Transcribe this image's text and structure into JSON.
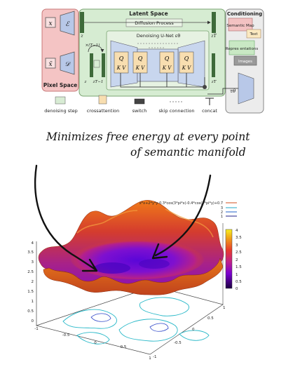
{
  "diagram": {
    "pixel_space": {
      "title": "Pixel Space",
      "encoder_in": "x",
      "encoder": "ℰ",
      "decoder_out": "x̃",
      "decoder": "𝒟"
    },
    "latent_space": {
      "title": "Latent Space",
      "diffusion": "Diffusion Process",
      "unet": "Denoising U-Net εθ",
      "z": "z",
      "zT": "zT",
      "zT1": "zT−1",
      "repeat": "×(T−1)",
      "qkv": [
        {
          "q": "Q",
          "kv": "K V"
        },
        {
          "q": "Q",
          "kv": "K V"
        },
        {
          "q": "Q",
          "kv": "K V"
        },
        {
          "q": "Q",
          "kv": "K V"
        }
      ]
    },
    "conditioning": {
      "title": "Conditioning",
      "items": [
        "Semantic Map",
        "Text",
        "Repres entations",
        "Images"
      ],
      "tau": "τθ"
    },
    "legend": [
      {
        "label": "denoising step"
      },
      {
        "label": "crossattention"
      },
      {
        "label": "switch"
      },
      {
        "label": "skip connection"
      },
      {
        "label": "concat"
      }
    ]
  },
  "caption": {
    "line1": "Minimizes free energy at every point",
    "line2": "of semantic manifold"
  },
  "plot": {
    "legend_title": "x*x+2*y*y-0.3*cos(3*pi*x)-0.4*cos(4*pi*y)+0.7",
    "legend_entries": [
      "3",
      "2",
      "1"
    ],
    "colorbar_ticks": [
      "4",
      "3.5",
      "3",
      "2.5",
      "2",
      "1.5",
      "1",
      "0.5",
      "0"
    ],
    "z_ticks": [
      "4",
      "3.5",
      "3",
      "2.5",
      "2",
      "1.5",
      "1",
      "0.5",
      "0"
    ],
    "x_ticks": [
      "-1",
      "-0.5",
      "0",
      "0.5",
      "1"
    ],
    "y_ticks": [
      "-1",
      "-0.5",
      "0",
      "0.5",
      "1"
    ]
  }
}
